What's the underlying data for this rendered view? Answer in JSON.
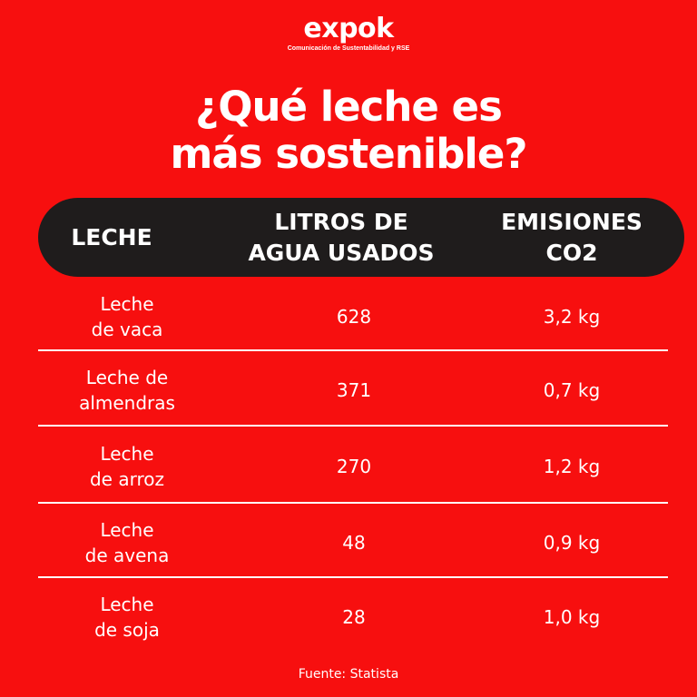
{
  "brand": {
    "name": "expok",
    "tagline": "Comunicación de Sustentabilidad y RSE"
  },
  "title": {
    "line1": "¿Qué leche es",
    "line2": "más sostenible?"
  },
  "table": {
    "headers": [
      "LECHE",
      "LITROS DE\nAGUA USADOS",
      "EMISIONES\nCO2"
    ],
    "rows": [
      {
        "milk": "Leche\nde vaca",
        "water": "628",
        "emissions": "3,2 kg"
      },
      {
        "milk": "Leche de\nalmendras",
        "water": "371",
        "emissions": "0,7 kg"
      },
      {
        "milk": "Leche\nde arroz",
        "water": "270",
        "emissions": "1,2 kg"
      },
      {
        "milk": "Leche\nde avena",
        "water": "48",
        "emissions": "0,9 kg"
      },
      {
        "milk": "Leche\nde soja",
        "water": "28",
        "emissions": "1,0 kg"
      }
    ]
  },
  "source": "Fuente: Statista",
  "colors": {
    "background": "#f70f0f",
    "header_bar": "#1f1c1c",
    "text": "#ffffff"
  }
}
